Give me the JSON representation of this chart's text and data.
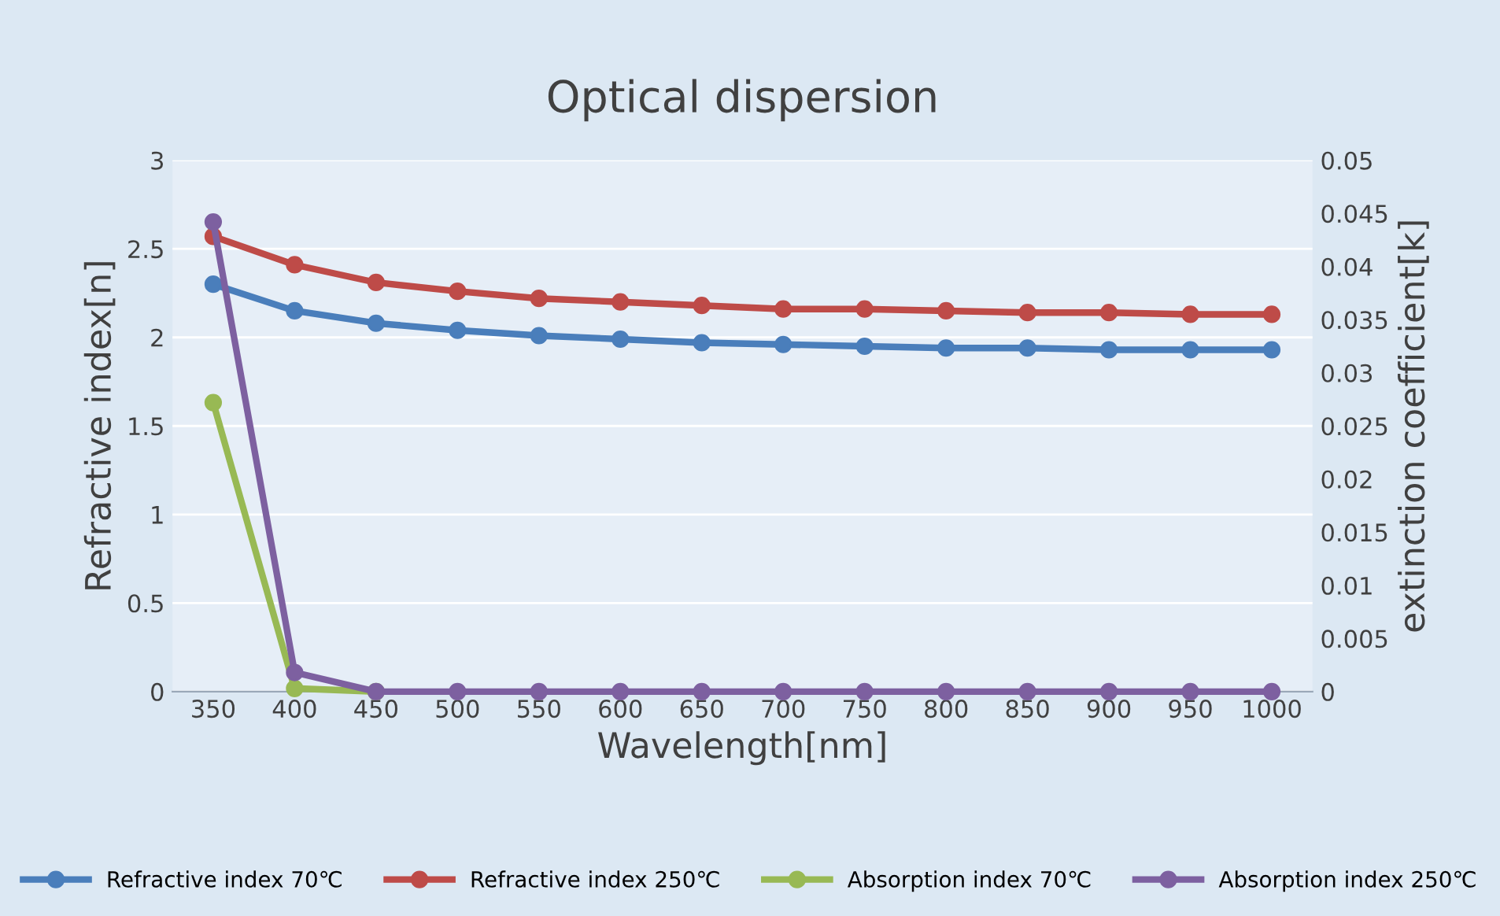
{
  "chart_data": {
    "type": "line",
    "title": "Optical dispersion",
    "xlabel": "Wavelength[nm]",
    "ylabel": "Refractive index[n]",
    "y2label": "extinction coefficient[k]",
    "categories": [
      "350",
      "400",
      "450",
      "500",
      "550",
      "600",
      "650",
      "700",
      "750",
      "800",
      "850",
      "900",
      "950",
      "1000"
    ],
    "series": [
      {
        "name": "Refractive index 70℃",
        "color": "#4a7ebb",
        "values": [
          2.3,
          2.15,
          2.08,
          2.04,
          2.01,
          1.99,
          1.97,
          1.96,
          1.95,
          1.94,
          1.94,
          1.93,
          1.93,
          1.93
        ]
      },
      {
        "name": "Refractive index 250℃",
        "color": "#be4b48",
        "values": [
          2.57,
          2.41,
          2.31,
          2.26,
          2.22,
          2.2,
          2.18,
          2.16,
          2.16,
          2.15,
          2.14,
          2.14,
          2.13,
          2.13
        ]
      },
      {
        "name": "Absorption index 70℃",
        "color": "#98b954",
        "axis": "y2",
        "values": [
          0.0272,
          0.0003,
          0,
          null,
          null,
          null,
          null,
          null,
          null,
          null,
          null,
          null,
          null,
          null
        ]
      },
      {
        "name": "Absorption index 250℃",
        "color": "#7d60a0",
        "axis": "y2",
        "values": [
          0.0442,
          0.0018,
          0,
          0,
          0,
          0,
          0,
          0,
          0,
          0,
          0,
          0,
          0,
          0
        ]
      }
    ],
    "ylim": [
      0,
      3
    ],
    "yticks": [
      0,
      0.5,
      1,
      1.5,
      2,
      2.5,
      3
    ],
    "y2lim": [
      0,
      0.05
    ],
    "y2ticks": [
      0,
      0.005,
      0.01,
      0.015,
      0.02,
      0.025,
      0.03,
      0.035,
      0.04,
      0.045,
      0.05
    ],
    "grid": "y",
    "legend": "bottom",
    "marker": "circle",
    "line_style": "solid"
  }
}
